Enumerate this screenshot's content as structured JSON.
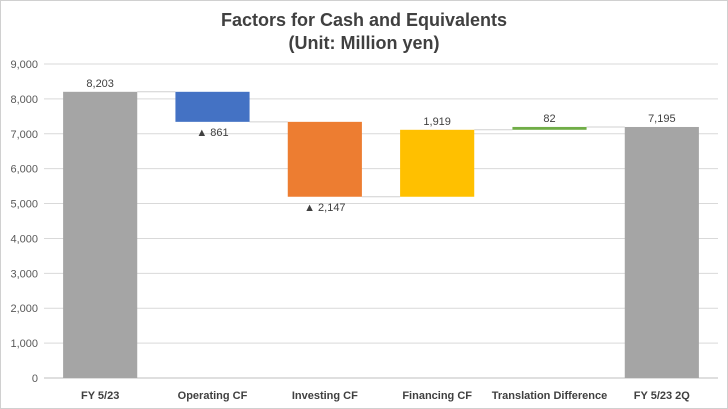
{
  "chart_data": {
    "type": "bar",
    "subtype": "waterfall",
    "title": [
      "Factors for Cash and Equivalents",
      "(Unit: Million yen)"
    ],
    "categories": [
      "FY 5/23",
      "Operating CF",
      "Investing CF",
      "Financing CF",
      "Translation Difference",
      "FY 5/23 2Q"
    ],
    "bars": [
      {
        "category": "FY 5/23",
        "kind": "total",
        "start": 0,
        "end": 8203,
        "label": "8,203",
        "color": "#a5a5a5"
      },
      {
        "category": "Operating CF",
        "kind": "decrease",
        "start": 8203,
        "end": 7342,
        "label": "▲ 861",
        "color": "#4472c4"
      },
      {
        "category": "Investing CF",
        "kind": "decrease",
        "start": 7342,
        "end": 5195,
        "label": "▲ 2,147",
        "color": "#ed7d31"
      },
      {
        "category": "Financing CF",
        "kind": "increase",
        "start": 5195,
        "end": 7114,
        "label": "1,919",
        "color": "#ffc000"
      },
      {
        "category": "Translation Difference",
        "kind": "increase",
        "start": 7114,
        "end": 7196,
        "label": "82",
        "color": "#70ad47"
      },
      {
        "category": "FY 5/23 2Q",
        "kind": "total",
        "start": 0,
        "end": 7195,
        "label": "7,195",
        "color": "#a5a5a5"
      }
    ],
    "ylim": [
      0,
      9000
    ],
    "yticks": [
      0,
      1000,
      2000,
      3000,
      4000,
      5000,
      6000,
      7000,
      8000,
      9000
    ],
    "ytick_labels": [
      "0",
      "1,000",
      "2,000",
      "3,000",
      "4,000",
      "5,000",
      "6,000",
      "7,000",
      "8,000",
      "9,000"
    ],
    "grid": true,
    "connectors": true,
    "legend": "none",
    "xlabel": "",
    "ylabel": ""
  }
}
